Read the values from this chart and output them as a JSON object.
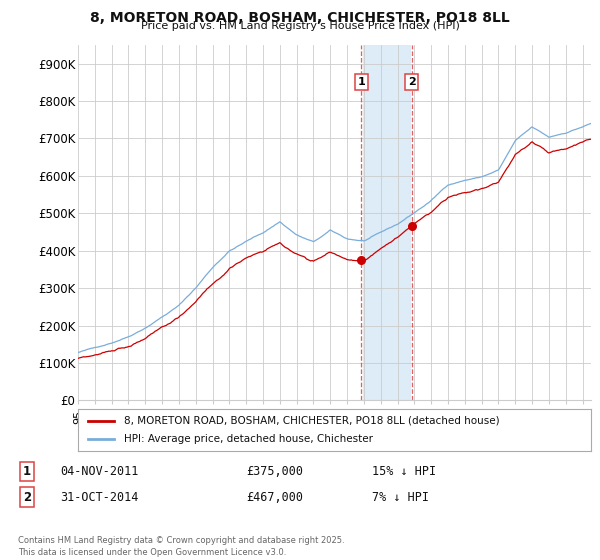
{
  "title1": "8, MORETON ROAD, BOSHAM, CHICHESTER, PO18 8LL",
  "title2": "Price paid vs. HM Land Registry's House Price Index (HPI)",
  "ylabel_ticks": [
    "£0",
    "£100K",
    "£200K",
    "£300K",
    "£400K",
    "£500K",
    "£600K",
    "£700K",
    "£800K",
    "£900K"
  ],
  "ytick_vals": [
    0,
    100000,
    200000,
    300000,
    400000,
    500000,
    600000,
    700000,
    800000,
    900000
  ],
  "ylim": [
    0,
    950000
  ],
  "xlim_start": 1995.3,
  "xlim_end": 2025.5,
  "legend_line1": "8, MORETON ROAD, BOSHAM, CHICHESTER, PO18 8LL (detached house)",
  "legend_line2": "HPI: Average price, detached house, Chichester",
  "sale1_date": "04-NOV-2011",
  "sale1_price": "£375,000",
  "sale1_hpi": "15% ↓ HPI",
  "sale1_x": 2011.84,
  "sale2_date": "31-OCT-2014",
  "sale2_price": "£467,000",
  "sale2_hpi": "7% ↓ HPI",
  "sale2_x": 2014.83,
  "footer": "Contains HM Land Registry data © Crown copyright and database right 2025.\nThis data is licensed under the Open Government Licence v3.0.",
  "line_color_red": "#cc0000",
  "line_color_blue": "#7aaddb",
  "shade_color": "#daeaf5",
  "vline_color": "#dd4444",
  "background_color": "#ffffff",
  "grid_color": "#cccccc"
}
